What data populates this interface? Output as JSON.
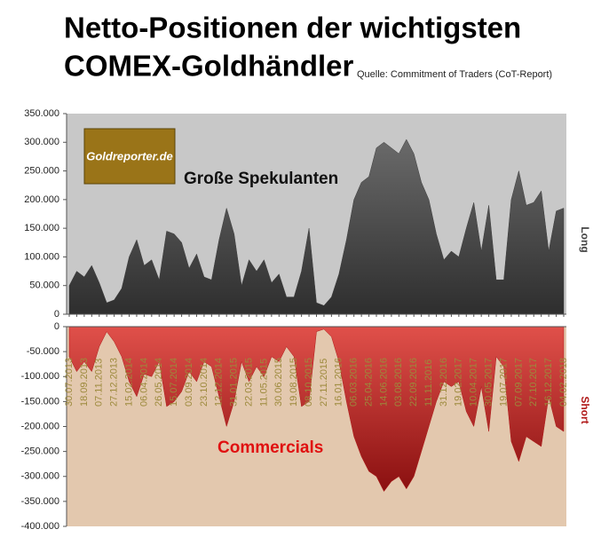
{
  "title": "Netto-Positionen der wichtigsten",
  "title_line2": "COMEX-Goldhändler",
  "source": "Quelle: Commitment of Traders (CoT-Report)",
  "logo": "Goldreporter.de",
  "chart_data": [
    {
      "type": "area",
      "ylabel": "Long",
      "color": "#3c3c3c",
      "background": "#c8c8c8",
      "series": [
        {
          "name": "Große Spekulanten",
          "color": "#3c3c3c",
          "values": [
            50000,
            75000,
            65000,
            85000,
            55000,
            20000,
            25000,
            45000,
            100000,
            130000,
            85000,
            95000,
            60000,
            145000,
            140000,
            125000,
            80000,
            105000,
            65000,
            60000,
            130000,
            185000,
            140000,
            50000,
            95000,
            75000,
            95000,
            55000,
            70000,
            30000,
            30000,
            75000,
            150000,
            20000,
            15000,
            30000,
            70000,
            130000,
            200000,
            230000,
            240000,
            290000,
            300000,
            290000,
            280000,
            305000,
            280000,
            230000,
            200000,
            140000,
            95000,
            110000,
            100000,
            150000,
            195000,
            110000,
            190000,
            60000,
            60000,
            200000,
            250000,
            190000,
            195000,
            215000,
            110000,
            180000,
            185000
          ]
        }
      ],
      "ylim": [
        0,
        350000
      ],
      "yticks": [
        0,
        {
          "value": 50000,
          "label": "50.000"
        },
        {
          "value": 100000,
          "label": "100.000"
        },
        {
          "value": 150000,
          "label": "150.000"
        },
        {
          "value": 200000,
          "label": "200.000"
        },
        {
          "value": 250000,
          "label": "250.000"
        },
        {
          "value": 300000,
          "label": "300.000"
        },
        {
          "value": 350000,
          "label": "350.000"
        }
      ]
    },
    {
      "type": "area",
      "ylabel": "Short",
      "color": "#b01818",
      "background": "#e3c8ae",
      "categories": [
        "30.07.2013",
        null,
        "18.09.2013",
        null,
        "07.11.2013",
        null,
        "27.12.2013",
        null,
        "15.02.2014",
        null,
        "06.04.2014",
        null,
        "26.05.2014",
        null,
        "15.07.2014",
        null,
        "03.09.2014",
        null,
        "23.10.2014",
        null,
        "12.12.2014",
        null,
        "31.01.2015",
        null,
        "22.03.2015",
        null,
        "11.05.2015",
        null,
        "30.06.2015",
        null,
        "19.08.2015",
        null,
        "08.10.2015",
        null,
        "27.11.2015",
        null,
        "16.01.2016",
        null,
        "06.03.2016",
        null,
        "25.04.2016",
        null,
        "14.06.2016",
        null,
        "03.08.2016",
        null,
        "22.09.2016",
        null,
        "11.11.2016",
        null,
        "31.12.2016",
        null,
        "19.02.2017",
        null,
        "10.04.2017",
        null,
        "30.05.2017",
        null,
        "19.07.2017",
        null,
        "07.09.2017",
        null,
        "27.10.2017",
        null,
        "16.12.2017",
        null,
        "04.02.2018"
      ],
      "series": [
        {
          "name": "Commercials",
          "color": "#b01818",
          "values": [
            -60000,
            -90000,
            -70000,
            -90000,
            -40000,
            -10000,
            -30000,
            -60000,
            -110000,
            -140000,
            -95000,
            -100000,
            -70000,
            -160000,
            -150000,
            -130000,
            -90000,
            -110000,
            -70000,
            -80000,
            -140000,
            -200000,
            -150000,
            -70000,
            -110000,
            -80000,
            -100000,
            -60000,
            -70000,
            -40000,
            -60000,
            -160000,
            -150000,
            -10000,
            -5000,
            -20000,
            -70000,
            -150000,
            -220000,
            -260000,
            -290000,
            -300000,
            -330000,
            -310000,
            -300000,
            -325000,
            -300000,
            -250000,
            -200000,
            -150000,
            -110000,
            -120000,
            -110000,
            -170000,
            -200000,
            -120000,
            -210000,
            -60000,
            -80000,
            -230000,
            -270000,
            -220000,
            -230000,
            -240000,
            -140000,
            -200000,
            -210000
          ]
        }
      ],
      "ylim": [
        -400000,
        0
      ],
      "yticks": [
        0,
        {
          "value": -50000,
          "label": "-50.000"
        },
        {
          "value": -100000,
          "label": "-100.000"
        },
        {
          "value": -150000,
          "label": "-150.000"
        },
        {
          "value": -200000,
          "label": "-200.000"
        },
        {
          "value": -250000,
          "label": "-250.000"
        },
        {
          "value": -300000,
          "label": "-300.000"
        },
        {
          "value": -350000,
          "label": "-350.000"
        },
        {
          "value": -400000,
          "label": "-400.000"
        }
      ]
    }
  ]
}
